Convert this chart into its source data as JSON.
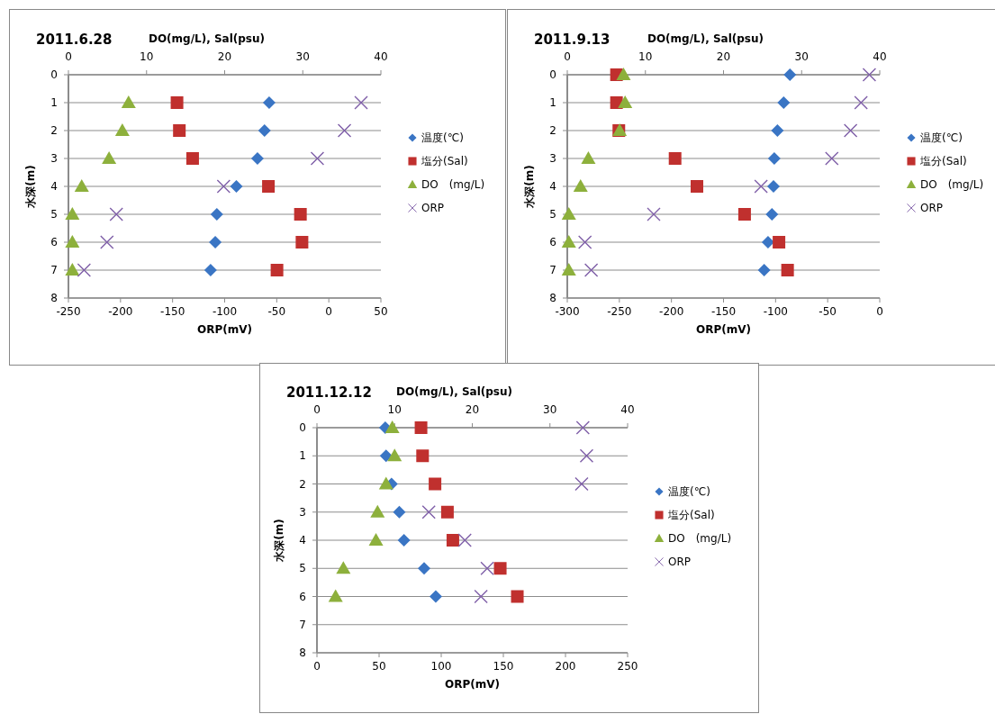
{
  "chart_data": [
    {
      "type": "scatter",
      "title": "2011.6.28",
      "xlabel": "ORP(mV)",
      "x2label": "DO(mg/L), Sal(psu)",
      "ylabel": "水深(m)",
      "xlim": [
        -250,
        50
      ],
      "xticks": [
        -250,
        -200,
        -150,
        -100,
        -50,
        0,
        50
      ],
      "x2lim": [
        0,
        40
      ],
      "x2ticks": [
        0,
        10,
        20,
        30,
        40
      ],
      "ylim": [
        8,
        0
      ],
      "yticks": [
        0,
        1,
        2,
        3,
        4,
        5,
        6,
        7,
        8
      ],
      "grid": "y",
      "legend": "right",
      "series": [
        {
          "name": "温度(℃)",
          "color": "#3a75c4",
          "marker": "diamond",
          "axis": "x2",
          "x": [
            25.7,
            25.1,
            24.2,
            21.5,
            19.0,
            18.8,
            18.2
          ],
          "values": [
            1,
            2,
            3,
            4,
            5,
            6,
            7
          ]
        },
        {
          "name": "塩分(Sal)",
          "color": "#c0302e",
          "marker": "square",
          "axis": "x2",
          "x": [
            13.9,
            14.2,
            15.9,
            25.6,
            29.7,
            29.9,
            26.7
          ],
          "values": [
            1,
            2,
            3,
            4,
            5,
            6,
            7
          ]
        },
        {
          "name": "DO　(mg/L)",
          "color": "#8db03c",
          "marker": "triangle",
          "axis": "x2",
          "x": [
            7.7,
            6.9,
            5.2,
            1.7,
            0.5,
            0.5,
            0.5
          ],
          "values": [
            1,
            2,
            3,
            4,
            5,
            6,
            7
          ]
        },
        {
          "name": "ORP",
          "color": "#7f5fa8",
          "marker": "cross",
          "x": [
            31,
            15,
            -11,
            -101,
            -204,
            -213,
            -235
          ],
          "values": [
            1,
            2,
            3,
            4,
            5,
            6,
            7
          ]
        }
      ]
    },
    {
      "type": "scatter",
      "title": "2011.9.13",
      "xlabel": "ORP(mV)",
      "x2label": "DO(mg/L), Sal(psu)",
      "ylabel": "水深(m)",
      "xlim": [
        -300,
        0
      ],
      "xticks": [
        -300,
        -250,
        -200,
        -150,
        -100,
        -50,
        0
      ],
      "x2lim": [
        0,
        40
      ],
      "x2ticks": [
        0,
        10,
        20,
        30,
        40
      ],
      "ylim": [
        8,
        0
      ],
      "yticks": [
        0,
        1,
        2,
        3,
        4,
        5,
        6,
        7,
        8
      ],
      "grid": "y",
      "legend": "right",
      "series": [
        {
          "name": "温度(℃)",
          "color": "#3a75c4",
          "marker": "diamond",
          "axis": "x2",
          "x": [
            28.5,
            27.7,
            26.9,
            26.5,
            26.4,
            26.2,
            25.7,
            25.2
          ],
          "values": [
            0,
            1,
            2,
            3,
            4,
            5,
            6,
            7
          ]
        },
        {
          "name": "塩分(Sal)",
          "color": "#c0302e",
          "marker": "square",
          "axis": "x2",
          "x": [
            6.3,
            6.3,
            6.6,
            13.8,
            16.6,
            22.7,
            27.1,
            28.2
          ],
          "values": [
            0,
            1,
            2,
            3,
            4,
            5,
            6,
            7
          ]
        },
        {
          "name": "DO　(mg/L)",
          "color": "#8db03c",
          "marker": "triangle",
          "axis": "x2",
          "x": [
            7.2,
            7.4,
            6.7,
            2.7,
            1.7,
            0.2,
            0.2,
            0.2
          ],
          "values": [
            0,
            1,
            2,
            3,
            4,
            5,
            6,
            7
          ]
        },
        {
          "name": "ORP",
          "color": "#7f5fa8",
          "marker": "cross",
          "x": [
            -10,
            -18,
            -28,
            -46,
            -114,
            -217,
            -283,
            -277
          ],
          "values": [
            0,
            1,
            2,
            3,
            4,
            5,
            6,
            7
          ]
        }
      ]
    },
    {
      "type": "scatter",
      "title": "2011.12.12",
      "xlabel": "ORP(mV)",
      "x2label": "DO(mg/L), Sal(psu)",
      "ylabel": "水深(m)",
      "xlim": [
        0,
        250
      ],
      "xticks": [
        0,
        50,
        100,
        150,
        200,
        250
      ],
      "x2lim": [
        0,
        40
      ],
      "x2ticks": [
        0,
        10,
        20,
        30,
        40
      ],
      "ylim": [
        8,
        0
      ],
      "yticks": [
        0,
        1,
        2,
        3,
        4,
        5,
        6,
        7,
        8
      ],
      "grid": "y",
      "legend": "right",
      "series": [
        {
          "name": "温度(℃)",
          "color": "#3a75c4",
          "marker": "diamond",
          "axis": "x2",
          "x": [
            8.8,
            8.9,
            9.6,
            10.6,
            11.2,
            13.8,
            15.3
          ],
          "values": [
            0,
            1,
            2,
            3,
            4,
            5,
            6
          ]
        },
        {
          "name": "塩分(Sal)",
          "color": "#c0302e",
          "marker": "square",
          "axis": "x2",
          "x": [
            13.4,
            13.6,
            15.2,
            16.8,
            17.5,
            23.6,
            25.8
          ],
          "values": [
            0,
            1,
            2,
            3,
            4,
            5,
            6
          ]
        },
        {
          "name": "DO　(mg/L)",
          "color": "#8db03c",
          "marker": "triangle",
          "axis": "x2",
          "x": [
            9.7,
            10.0,
            8.9,
            7.8,
            7.6,
            3.4,
            2.4
          ],
          "values": [
            0,
            1,
            2,
            3,
            4,
            5,
            6
          ]
        },
        {
          "name": "ORP",
          "color": "#7f5fa8",
          "marker": "cross",
          "x": [
            214,
            217,
            213,
            90,
            119,
            137,
            132
          ],
          "values": [
            0,
            1,
            2,
            3,
            4,
            5,
            6
          ]
        }
      ]
    }
  ]
}
